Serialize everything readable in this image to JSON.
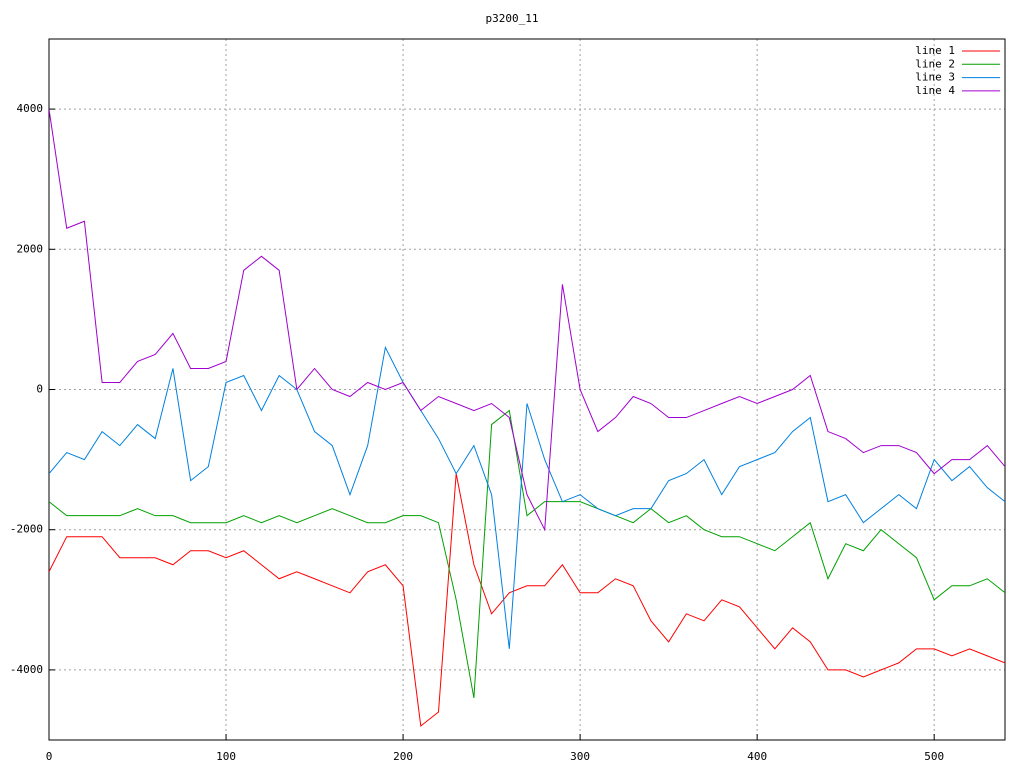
{
  "chart_data": {
    "type": "line",
    "title": "p3200_11",
    "x": [
      0,
      10,
      20,
      30,
      40,
      50,
      60,
      70,
      80,
      90,
      100,
      110,
      120,
      130,
      140,
      150,
      160,
      170,
      180,
      190,
      200,
      210,
      220,
      230,
      240,
      250,
      260,
      270,
      280,
      290,
      300,
      310,
      320,
      330,
      340,
      350,
      360,
      370,
      380,
      390,
      400,
      410,
      420,
      430,
      440,
      450,
      460,
      470,
      480,
      490,
      500,
      510,
      520,
      530,
      540
    ],
    "series": [
      {
        "name": "line 1",
        "color": "#ff0000",
        "values": [
          -2600,
          -2100,
          -2100,
          -2100,
          -2400,
          -2400,
          -2400,
          -2500,
          -2300,
          -2300,
          -2400,
          -2300,
          -2500,
          -2700,
          -2600,
          -2700,
          -2800,
          -2900,
          -2600,
          -2500,
          -2800,
          -4800,
          -4600,
          -1200,
          -2500,
          -3200,
          -2900,
          -2800,
          -2800,
          -2500,
          -2900,
          -2900,
          -2700,
          -2800,
          -3300,
          -3600,
          -3200,
          -3300,
          -3000,
          -3100,
          -3400,
          -3700,
          -3400,
          -3600,
          -4000,
          -4000,
          -4100,
          -4000,
          -3900,
          -3700,
          -3700,
          -3800,
          -3700,
          -3800,
          -3900
        ]
      },
      {
        "name": "line 2",
        "color": "#00a000",
        "values": [
          -1600,
          -1800,
          -1800,
          -1800,
          -1800,
          -1700,
          -1800,
          -1800,
          -1900,
          -1900,
          -1900,
          -1800,
          -1900,
          -1800,
          -1900,
          -1800,
          -1700,
          -1800,
          -1900,
          -1900,
          -1800,
          -1800,
          -1900,
          -3000,
          -4400,
          -500,
          -300,
          -1800,
          -1600,
          -1600,
          -1600,
          -1700,
          -1800,
          -1900,
          -1700,
          -1900,
          -1800,
          -2000,
          -2100,
          -2100,
          -2200,
          -2300,
          -2100,
          -1900,
          -2700,
          -2200,
          -2300,
          -2000,
          -2200,
          -2400,
          -3000,
          -2800,
          -2800,
          -2700,
          -2900
        ]
      },
      {
        "name": "line 3",
        "color": "#0080e0",
        "values": [
          -1200,
          -900,
          -1000,
          -600,
          -800,
          -500,
          -700,
          300,
          -1300,
          -1100,
          100,
          200,
          -300,
          200,
          0,
          -600,
          -800,
          -1500,
          -800,
          600,
          100,
          -300,
          -700,
          -1200,
          -800,
          -1500,
          -3700,
          -200,
          -1000,
          -1600,
          -1500,
          -1700,
          -1800,
          -1700,
          -1700,
          -1300,
          -1200,
          -1000,
          -1500,
          -1100,
          -1000,
          -900,
          -600,
          -400,
          -1600,
          -1500,
          -1900,
          -1700,
          -1500,
          -1700,
          -1000,
          -1300,
          -1100,
          -1400,
          -1600
        ]
      },
      {
        "name": "line 4",
        "color": "#a000d0",
        "values": [
          4000,
          2300,
          2400,
          100,
          100,
          400,
          500,
          800,
          300,
          300,
          400,
          1700,
          1900,
          1700,
          0,
          300,
          0,
          -100,
          100,
          0,
          100,
          -300,
          -100,
          -200,
          -300,
          -200,
          -400,
          -1500,
          -2000,
          1500,
          0,
          -600,
          -400,
          -100,
          -200,
          -400,
          -400,
          -300,
          -200,
          -100,
          -200,
          -100,
          0,
          200,
          -600,
          -700,
          -900,
          -800,
          -800,
          -900,
          -1200,
          -1000,
          -1000,
          -800,
          -1100
        ]
      }
    ],
    "xlim": [
      0,
      540
    ],
    "ylim": [
      -5000,
      5000
    ],
    "xticks": [
      0,
      100,
      200,
      300,
      400,
      500
    ],
    "yticks": [
      -4000,
      -2000,
      0,
      2000,
      4000
    ],
    "grid": true,
    "legend": "top-right"
  }
}
